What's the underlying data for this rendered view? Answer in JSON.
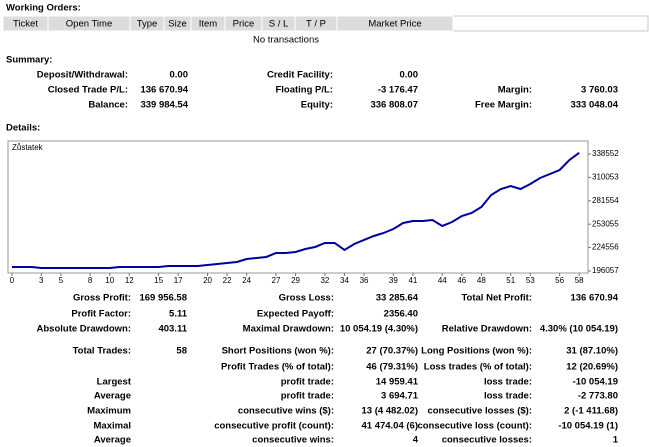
{
  "working_orders": {
    "title": "Working Orders:",
    "columns": [
      "Ticket",
      "Open Time",
      "Type",
      "Size",
      "Item",
      "Price",
      "S / L",
      "T / P",
      "Market Price"
    ],
    "empty": "No transactions"
  },
  "summary": {
    "title": "Summary:",
    "rows": [
      [
        "Deposit/Withdrawal:",
        "0.00",
        "Credit Facility:",
        "0.00",
        null,
        null
      ],
      [
        "Closed Trade P/L:",
        "136 670.94",
        "Floating P/L:",
        "-3 176.47",
        "Margin:",
        "3 760.03"
      ],
      [
        "Balance:",
        "339 984.54",
        "Equity:",
        "336 808.07",
        "Free Margin:",
        "333 048.04"
      ]
    ]
  },
  "details": {
    "title": "Details:"
  },
  "chart_data": {
    "type": "line",
    "x": [
      0,
      1,
      2,
      3,
      4,
      5,
      6,
      7,
      8,
      9,
      10,
      11,
      12,
      13,
      14,
      15,
      16,
      17,
      18,
      19,
      20,
      21,
      22,
      23,
      24,
      25,
      26,
      27,
      28,
      29,
      30,
      31,
      32,
      33,
      34,
      35,
      36,
      37,
      38,
      39,
      40,
      41,
      42,
      43,
      44,
      45,
      46,
      47,
      48,
      49,
      50,
      51,
      52,
      53,
      54,
      55,
      56,
      57,
      58
    ],
    "series": [
      {
        "name": "Zůstatek",
        "color": "#0000a0",
        "values": [
          200930,
          200930,
          200930,
          199710,
          199710,
          199710,
          199710,
          199710,
          199710,
          199710,
          199710,
          200930,
          200930,
          200930,
          200930,
          200930,
          202150,
          202150,
          202150,
          202150,
          203370,
          204580,
          205800,
          207020,
          210670,
          211890,
          213110,
          217980,
          217980,
          219200,
          222850,
          225290,
          230160,
          230160,
          221640,
          228940,
          233820,
          238690,
          242340,
          247210,
          254520,
          256960,
          256960,
          258180,
          250870,
          255740,
          263050,
          266700,
          274010,
          288630,
          295930,
          299590,
          295930,
          302020,
          309330,
          314200,
          319080,
          331260,
          339985
        ]
      }
    ],
    "xlim": [
      -0.4,
      58.9
    ],
    "xticks": [
      0,
      3,
      5,
      8,
      10,
      12,
      15,
      17,
      20,
      22,
      24,
      27,
      29,
      32,
      34,
      36,
      39,
      41,
      44,
      46,
      48,
      51,
      53,
      56,
      58
    ],
    "ylim": [
      193600,
      354400
    ],
    "yticks": [
      338552,
      310053,
      281554,
      253055,
      224556,
      196057
    ]
  },
  "stats": {
    "rows": [
      [
        "Gross Profit:",
        "169 956.58",
        "Gross Loss:",
        "33 285.64",
        "Total Net Profit:",
        "136 670.94"
      ],
      [
        "Profit Factor:",
        "5.11",
        "Expected Payoff:",
        "2356.40",
        null,
        null
      ],
      [
        "Absolute Drawdown:",
        "403.11",
        "Maximal Drawdown:",
        "10 054.19 (4.30%)",
        "Relative Drawdown:",
        "4.30% (10 054.19)"
      ],
      [
        "Total Trades:",
        "58",
        "Short Positions (won %):",
        "27 (70.37%)",
        "Long Positions (won %):",
        "31 (87.10%)"
      ],
      [
        null,
        null,
        "Profit Trades (% of total):",
        "46 (79.31%)",
        "Loss trades (% of total):",
        "12 (20.69%)"
      ],
      [
        "Largest",
        null,
        "profit trade:",
        "14 959.41",
        "loss trade:",
        "-10 054.19"
      ],
      [
        "Average",
        null,
        "profit trade:",
        "3 694.71",
        "loss trade:",
        "-2 773.80"
      ],
      [
        "Maximum",
        null,
        "consecutive wins ($):",
        "13 (4 482.02)",
        "consecutive losses ($):",
        "2 (-1 411.68)"
      ],
      [
        "Maximal",
        null,
        "consecutive profit (count):",
        "41 474.04 (6)",
        "consecutive loss (count):",
        "-10 054.19 (1)"
      ],
      [
        "Average",
        null,
        "consecutive wins:",
        "4",
        "consecutive losses:",
        "1"
      ]
    ]
  }
}
